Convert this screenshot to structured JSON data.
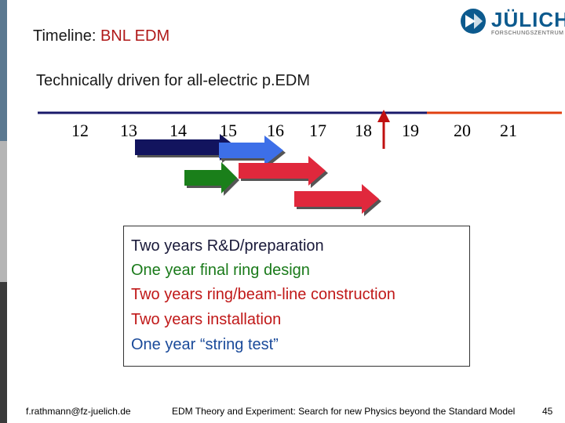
{
  "slide": {
    "title_prefix": "Timeline: ",
    "title_accent": "BNL EDM",
    "subtitle": "Technically driven for all-electric p.EDM"
  },
  "logo": {
    "name": "JÜLICH",
    "sub": "FORSCHUNGSZENTRUM"
  },
  "timeline": {
    "years": [
      "12",
      "13",
      "14",
      "15",
      "16",
      "17",
      "18",
      "19",
      "20",
      "21"
    ]
  },
  "info_box": {
    "lines": [
      {
        "text": "Two years R&D/preparation",
        "color": "#1a1a3a"
      },
      {
        "text": "One year final ring design",
        "color": "#1a7a1a"
      },
      {
        "text": "Two years ring/beam-line construction",
        "color": "#c01818"
      },
      {
        "text": "Two years installation",
        "color": "#c01818"
      },
      {
        "text": "One year “string test”",
        "color": "#1a4a9a"
      }
    ]
  },
  "footer": {
    "email": "f.rathmann@fz-juelich.de",
    "center": "EDM Theory and Experiment: Search for new Physics beyond the Standard Model",
    "page": "45"
  },
  "colors": {
    "navy_arrow": "#12145e",
    "blue_arrow": "#3d6fe8",
    "green_arrow": "#1a7f1a",
    "red_arrow": "#e0283c",
    "timeline_line": "#1a1a6a",
    "future_line": "#e04010",
    "marker": "#c01010"
  }
}
